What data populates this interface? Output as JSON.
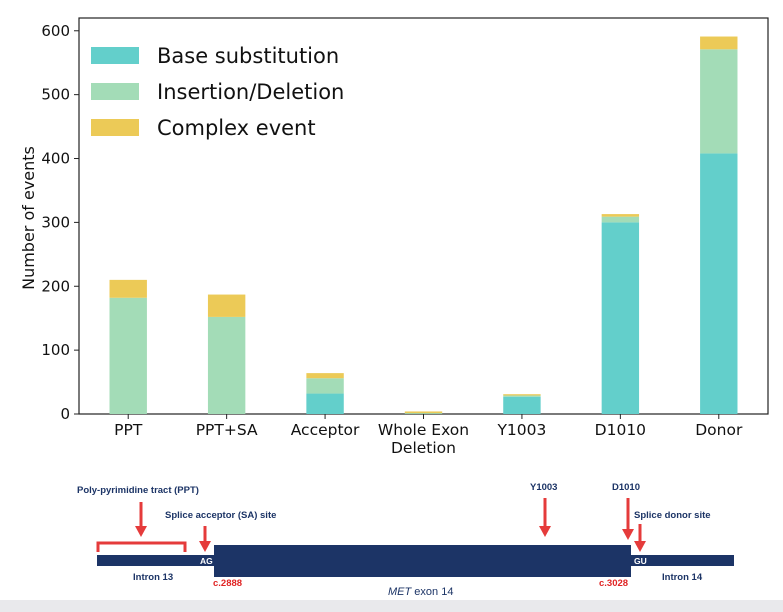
{
  "chart_data": {
    "type": "bar",
    "stacked": true,
    "title": "",
    "xlabel": "",
    "ylabel": "Number of events",
    "ylim": [
      0,
      620
    ],
    "yticks": [
      0,
      100,
      200,
      300,
      400,
      500,
      600
    ],
    "categories": [
      "PPT",
      "PPT+SA",
      "Acceptor",
      "Whole Exon\nDeletion",
      "Y1003",
      "D1010",
      "Donor"
    ],
    "legend_position": "top-left",
    "series": [
      {
        "name": "Base substitution",
        "color": "#63cfcb",
        "values": [
          0,
          0,
          32,
          1,
          27,
          300,
          408
        ]
      },
      {
        "name": "Insertion/Deletion",
        "color": "#a3dcb7",
        "values": [
          182,
          152,
          24,
          0,
          2,
          9,
          163
        ]
      },
      {
        "name": "Complex event",
        "color": "#ecca57",
        "values": [
          28,
          35,
          8,
          3,
          2,
          4,
          20
        ]
      }
    ]
  },
  "diagram": {
    "labels": {
      "ppt": "Poly-pyrimidine tract (PPT)",
      "sa": "Splice acceptor (SA) site",
      "y1003": "Y1003",
      "d1010": "D1010",
      "donor": "Splice donor site",
      "ag": "AG",
      "gu": "GU",
      "intron13": "Intron 13",
      "intron14": "Intron 14",
      "c2888": "c.2888",
      "c3028": "c.3028",
      "exon_gene": "MET",
      "exon_label": " exon 14"
    },
    "colors": {
      "navy": "#1c3466",
      "arrow": "#e53b3b",
      "coord": "#e02424"
    }
  }
}
